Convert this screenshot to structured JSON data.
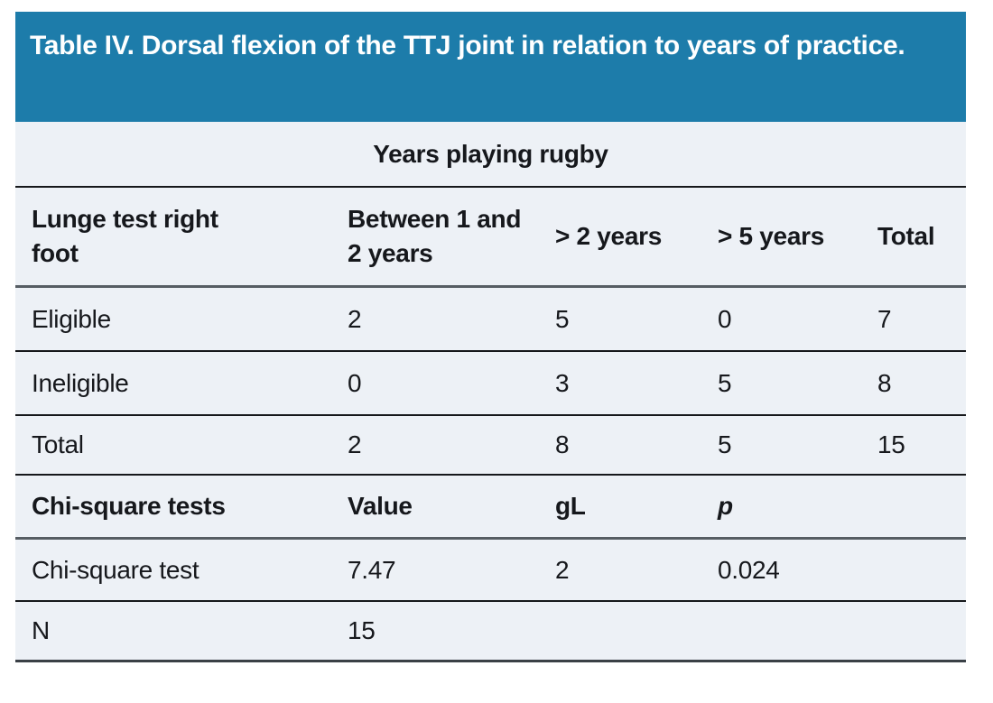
{
  "table": {
    "title": "Table IV. Dorsal flexion of the TTJ joint in relation to years of practice.",
    "span_header": "Years playing rugby",
    "columns": {
      "c1": "Lunge test right foot",
      "c2": "Between 1 and 2 years",
      "c3": "> 2 years",
      "c4": "> 5 years",
      "c5": "Total"
    },
    "rows": [
      {
        "label": "Eligible",
        "values": [
          "2",
          "5",
          "0",
          "7"
        ]
      },
      {
        "label": "Ineligible",
        "values": [
          "0",
          "3",
          "5",
          "8"
        ]
      },
      {
        "label": "Total",
        "values": [
          "2",
          "8",
          "5",
          "15"
        ]
      }
    ],
    "chi_square": {
      "columns": {
        "c1": "Chi-square tests",
        "c2": "Value",
        "c3": "gL",
        "c4": "p"
      },
      "rows": [
        {
          "label": "Chi-square test",
          "values": [
            "7.47",
            "2",
            "0.024"
          ]
        },
        {
          "label": "N",
          "values": [
            "15",
            "",
            ""
          ]
        }
      ]
    },
    "colors": {
      "banner_blue": "#1d7caa",
      "body_background": "#edf1f6",
      "text": "#16181c"
    }
  },
  "chart_data": {
    "type": "table",
    "title": "Table IV. Dorsal flexion of the TTJ joint in relation to years of practice.",
    "group_header": "Years playing rugby",
    "columns": [
      "Lunge test right foot",
      "Between 1 and 2 years",
      "> 2 years",
      "> 5 years",
      "Total"
    ],
    "rows": [
      [
        "Eligible",
        2,
        5,
        0,
        7
      ],
      [
        "Ineligible",
        0,
        3,
        5,
        8
      ],
      [
        "Total",
        2,
        8,
        5,
        15
      ]
    ],
    "chi_square_section": {
      "columns": [
        "Chi-square tests",
        "Value",
        "gL",
        "p"
      ],
      "rows": [
        [
          "Chi-square test",
          7.47,
          2,
          0.024
        ],
        [
          "N",
          15,
          null,
          null
        ]
      ]
    }
  }
}
